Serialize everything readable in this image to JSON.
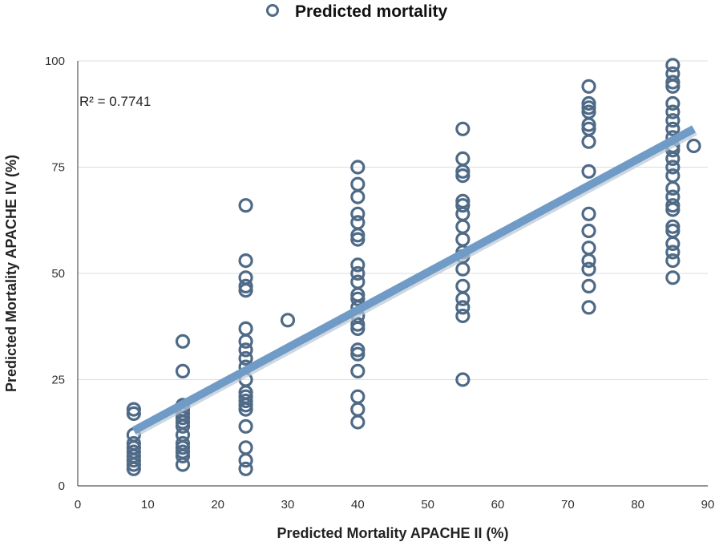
{
  "chart_data": {
    "type": "scatter",
    "title": "",
    "xlabel": "Predicted Mortality APACHE II (%)",
    "ylabel": "Predicted Mortality APACHE IV (%)",
    "xlim": [
      0,
      90
    ],
    "ylim": [
      0,
      100
    ],
    "xticks": [
      "0",
      "10",
      "20",
      "30",
      "40",
      "50",
      "60",
      "70",
      "80",
      "90"
    ],
    "yticks": [
      "0",
      "25",
      "50",
      "75",
      "100"
    ],
    "grid": "horizontal",
    "legend": {
      "position": "top-center",
      "entries": [
        "Predicted mortality"
      ]
    },
    "annotation": "R² = 0.7741",
    "marker_color": "#4e6a86",
    "trendline_color": "#6f9bc6",
    "trendline": {
      "x": [
        8,
        88
      ],
      "y": [
        13,
        84
      ]
    },
    "series": [
      {
        "name": "Predicted mortality",
        "points": [
          [
            8,
            4
          ],
          [
            8,
            5
          ],
          [
            8,
            6
          ],
          [
            8,
            7
          ],
          [
            8,
            8
          ],
          [
            8,
            9
          ],
          [
            8,
            10
          ],
          [
            8,
            12
          ],
          [
            8,
            17
          ],
          [
            8,
            18
          ],
          [
            15,
            5
          ],
          [
            15,
            7
          ],
          [
            15,
            8
          ],
          [
            15,
            9
          ],
          [
            15,
            10
          ],
          [
            15,
            12
          ],
          [
            15,
            14
          ],
          [
            15,
            15
          ],
          [
            15,
            16
          ],
          [
            15,
            17
          ],
          [
            15,
            18
          ],
          [
            15,
            19
          ],
          [
            15,
            27
          ],
          [
            15,
            34
          ],
          [
            24,
            4
          ],
          [
            24,
            6
          ],
          [
            24,
            9
          ],
          [
            24,
            14
          ],
          [
            24,
            18
          ],
          [
            24,
            19
          ],
          [
            24,
            20
          ],
          [
            24,
            21
          ],
          [
            24,
            22
          ],
          [
            24,
            25
          ],
          [
            24,
            28
          ],
          [
            24,
            30
          ],
          [
            24,
            32
          ],
          [
            24,
            34
          ],
          [
            24,
            37
          ],
          [
            24,
            46
          ],
          [
            24,
            47
          ],
          [
            24,
            49
          ],
          [
            24,
            53
          ],
          [
            24,
            66
          ],
          [
            30,
            39
          ],
          [
            40,
            15
          ],
          [
            40,
            18
          ],
          [
            40,
            21
          ],
          [
            40,
            27
          ],
          [
            40,
            31
          ],
          [
            40,
            32
          ],
          [
            40,
            37
          ],
          [
            40,
            38
          ],
          [
            40,
            40
          ],
          [
            40,
            42
          ],
          [
            40,
            44
          ],
          [
            40,
            45
          ],
          [
            40,
            48
          ],
          [
            40,
            50
          ],
          [
            40,
            52
          ],
          [
            40,
            58
          ],
          [
            40,
            59
          ],
          [
            40,
            62
          ],
          [
            40,
            64
          ],
          [
            40,
            68
          ],
          [
            40,
            71
          ],
          [
            40,
            75
          ],
          [
            55,
            25
          ],
          [
            55,
            40
          ],
          [
            55,
            42
          ],
          [
            55,
            44
          ],
          [
            55,
            47
          ],
          [
            55,
            51
          ],
          [
            55,
            54
          ],
          [
            55,
            55
          ],
          [
            55,
            58
          ],
          [
            55,
            61
          ],
          [
            55,
            64
          ],
          [
            55,
            66
          ],
          [
            55,
            67
          ],
          [
            55,
            73
          ],
          [
            55,
            74
          ],
          [
            55,
            77
          ],
          [
            55,
            84
          ],
          [
            73,
            42
          ],
          [
            73,
            47
          ],
          [
            73,
            51
          ],
          [
            73,
            53
          ],
          [
            73,
            56
          ],
          [
            73,
            60
          ],
          [
            73,
            64
          ],
          [
            73,
            74
          ],
          [
            73,
            81
          ],
          [
            73,
            84
          ],
          [
            73,
            85
          ],
          [
            73,
            88
          ],
          [
            73,
            89
          ],
          [
            73,
            90
          ],
          [
            73,
            94
          ],
          [
            85,
            49
          ],
          [
            85,
            53
          ],
          [
            85,
            55
          ],
          [
            85,
            57
          ],
          [
            85,
            60
          ],
          [
            85,
            61
          ],
          [
            85,
            65
          ],
          [
            85,
            66
          ],
          [
            85,
            68
          ],
          [
            85,
            70
          ],
          [
            85,
            73
          ],
          [
            85,
            75
          ],
          [
            85,
            77
          ],
          [
            85,
            79
          ],
          [
            85,
            80
          ],
          [
            85,
            82
          ],
          [
            85,
            84
          ],
          [
            85,
            86
          ],
          [
            85,
            88
          ],
          [
            85,
            90
          ],
          [
            85,
            94
          ],
          [
            85,
            95
          ],
          [
            85,
            97
          ],
          [
            85,
            99
          ],
          [
            88,
            80
          ]
        ]
      }
    ]
  }
}
